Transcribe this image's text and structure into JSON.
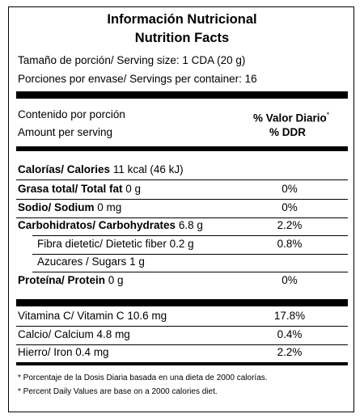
{
  "header": {
    "title_es": "Información Nutricional",
    "title_en": "Nutrition Facts"
  },
  "serving_size": "Tamaño de porción/ Serving size: 1 CDA (20 g)",
  "servings": "Porciones por envase/ Servings per container: 16",
  "column_header": {
    "amount_es": "Contenido por porción",
    "amount_en": "Amount per serving",
    "dv_es": "% Valor Diario",
    "dv_mark": "*",
    "dv_en": "% DDR"
  },
  "calories": {
    "label": "Calorías/ Calories",
    "amount": "11 kcal (46 kJ)"
  },
  "nutrients": [
    {
      "label": "Grasa total/ Total fat",
      "amount": "0 g",
      "dv": "0%"
    },
    {
      "label": "Sodio/ Sodium",
      "amount": "0 mg",
      "dv": "0%"
    },
    {
      "label": "Carbohidratos/ Carbohydrates",
      "amount": "6.8 g",
      "dv": "2.2%"
    },
    {
      "label": "Fibra dietetic/ Dietetic fiber",
      "amount": "0.2 g",
      "dv": "0.8%"
    },
    {
      "label": "Azucares / Sugars",
      "amount": "1 g"
    },
    {
      "label": "Proteína/ Protein",
      "amount": "0 g",
      "dv": "0%"
    }
  ],
  "vitamins": [
    {
      "label": "Vitamina C/ Vitamin C",
      "amount": "10.6 mg",
      "dv": "17.8%"
    },
    {
      "label": "Calcio/ Calcium",
      "amount": "4.8 mg",
      "dv": "0.4%"
    },
    {
      "label": "Hierro/ Iron",
      "amount": "0.4 mg",
      "dv": "2.2%"
    }
  ],
  "footnotes": [
    "* Porcentaje de la Dosis Diaria basada en una dieta de 2000 calorías.",
    "* Percent Daily Values are base on a 2000 calories diet."
  ]
}
